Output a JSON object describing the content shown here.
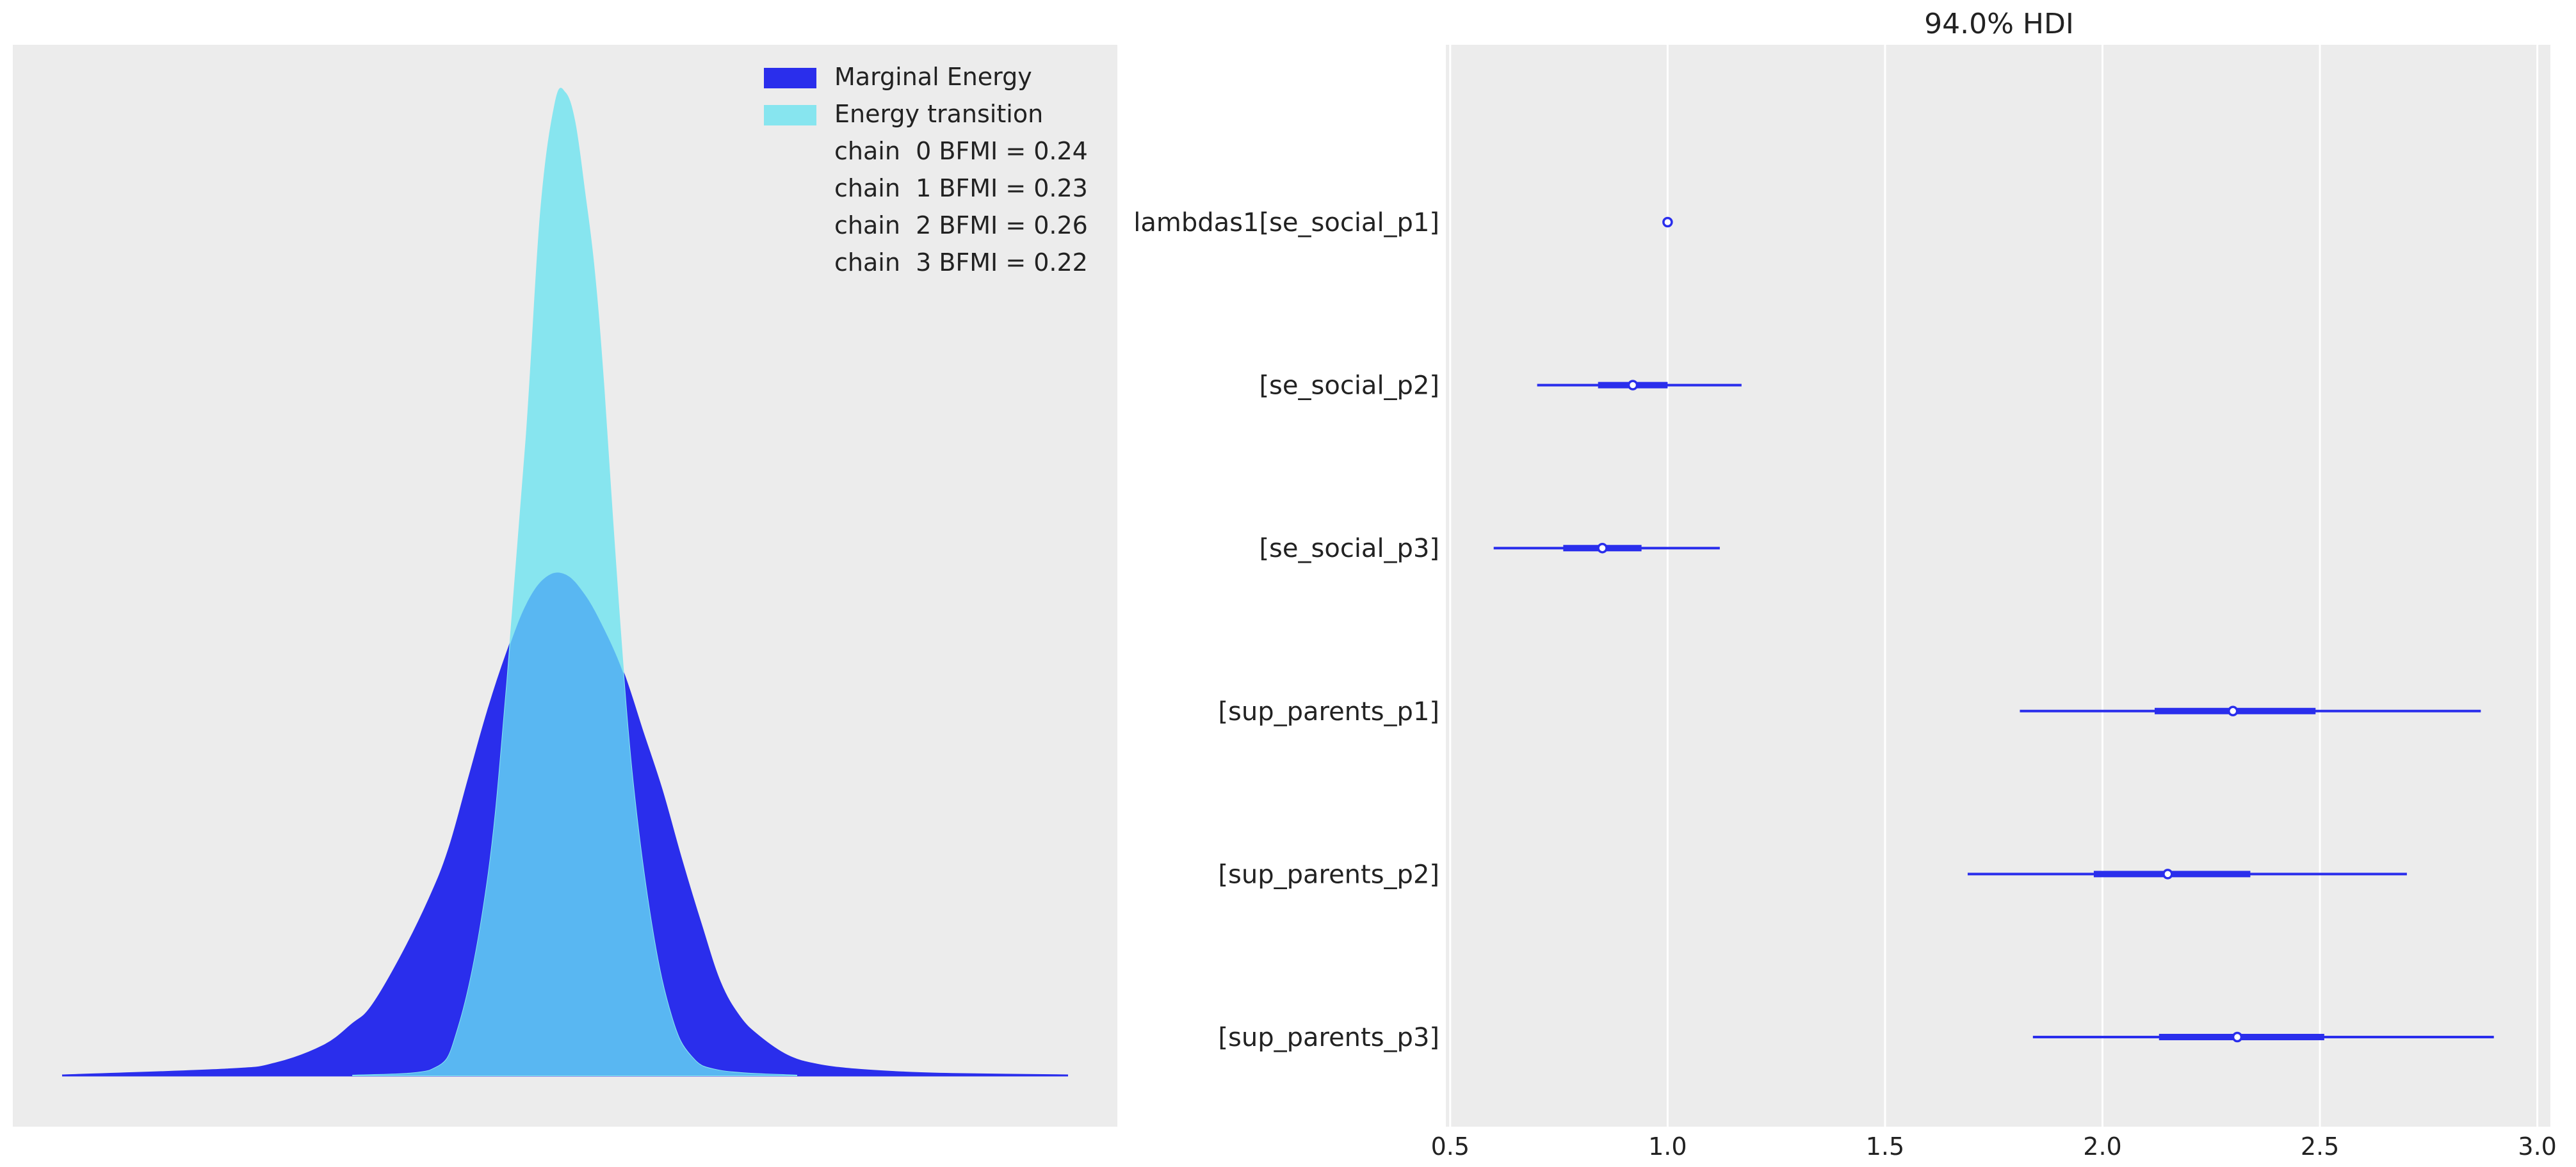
{
  "chart_data": [
    {
      "type": "area",
      "title": "",
      "xlabel": "",
      "ylabel": "",
      "x_ticks_visible": false,
      "y_ticks_visible": false,
      "grid": false,
      "legend": "top-right",
      "legend_entries": [
        {
          "label": "Marginal Energy",
          "color": "#2a2eec"
        },
        {
          "label": "Energy transition",
          "color": "#87e5ef"
        }
      ],
      "bfmi_labels": [
        "chain  0 BFMI = 0.24",
        "chain  1 BFMI = 0.23",
        "chain  2 BFMI = 0.26",
        "chain  3 BFMI = 0.22"
      ],
      "overlap_color": "#59b7f2",
      "series": [
        {
          "name": "Marginal Energy",
          "x": [
            -5.2,
            -3.5,
            -3.0,
            -2.5,
            -2.2,
            -2.0,
            -1.7,
            -1.4,
            -1.2,
            -1.0,
            -0.8,
            -0.6,
            -0.4,
            -0.2,
            0.0,
            0.2,
            0.4,
            0.6,
            0.8,
            1.0,
            1.2,
            1.4,
            1.6,
            1.8,
            2.0,
            2.3,
            2.6,
            3.0,
            3.5,
            4.0,
            5.2
          ],
          "y": [
            0.0,
            0.006,
            0.012,
            0.03,
            0.052,
            0.07,
            0.12,
            0.18,
            0.23,
            0.3,
            0.37,
            0.43,
            0.48,
            0.507,
            0.51,
            0.49,
            0.455,
            0.41,
            0.35,
            0.29,
            0.22,
            0.155,
            0.095,
            0.06,
            0.04,
            0.02,
            0.011,
            0.006,
            0.003,
            0.0015,
            0.0
          ]
        },
        {
          "name": "Energy transition",
          "x": [
            -2.2,
            -1.4,
            -1.1,
            -0.8,
            -0.6,
            -0.4,
            -0.25,
            -0.1,
            0.0,
            0.1,
            0.2,
            0.3,
            0.4,
            0.55,
            0.7,
            0.9,
            1.1,
            1.3,
            1.6,
            2.4
          ],
          "y": [
            0.0,
            0.005,
            0.05,
            0.2,
            0.4,
            0.65,
            0.88,
            0.99,
            1.0,
            0.97,
            0.9,
            0.82,
            0.7,
            0.48,
            0.3,
            0.15,
            0.06,
            0.02,
            0.005,
            0.0
          ]
        }
      ]
    },
    {
      "type": "forest",
      "title": "94.0% HDI",
      "xlabel": "",
      "ylabel": "",
      "xlim": [
        0.49,
        3.03
      ],
      "x_ticks": [
        0.5,
        1.0,
        1.5,
        2.0,
        2.5,
        3.0
      ],
      "x_tick_labels": [
        "0.5",
        "1.0",
        "1.5",
        "2.0",
        "2.5",
        "3.0"
      ],
      "grid": true,
      "color": "#2a2eec",
      "categories": [
        "lambdas1[se_social_p1]",
        "[se_social_p2]",
        "[se_social_p3]",
        "[sup_parents_p1]",
        "[sup_parents_p2]",
        "[sup_parents_p3]"
      ],
      "estimates": [
        {
          "label": "lambdas1[se_social_p1]",
          "point": 1.0,
          "hdi_low": 1.0,
          "hdi_high": 1.0,
          "iqr_low": 1.0,
          "iqr_high": 1.0
        },
        {
          "label": "[se_social_p2]",
          "point": 0.92,
          "hdi_low": 0.7,
          "hdi_high": 1.17,
          "iqr_low": 0.84,
          "iqr_high": 1.0
        },
        {
          "label": "[se_social_p3]",
          "point": 0.85,
          "hdi_low": 0.6,
          "hdi_high": 1.12,
          "iqr_low": 0.76,
          "iqr_high": 0.94
        },
        {
          "label": "[sup_parents_p1]",
          "point": 2.3,
          "hdi_low": 1.81,
          "hdi_high": 2.87,
          "iqr_low": 2.12,
          "iqr_high": 2.49
        },
        {
          "label": "[sup_parents_p2]",
          "point": 2.15,
          "hdi_low": 1.69,
          "hdi_high": 2.7,
          "iqr_low": 1.98,
          "iqr_high": 2.34
        },
        {
          "label": "[sup_parents_p3]",
          "point": 2.31,
          "hdi_low": 1.84,
          "hdi_high": 2.9,
          "iqr_low": 2.13,
          "iqr_high": 2.51
        }
      ]
    }
  ]
}
